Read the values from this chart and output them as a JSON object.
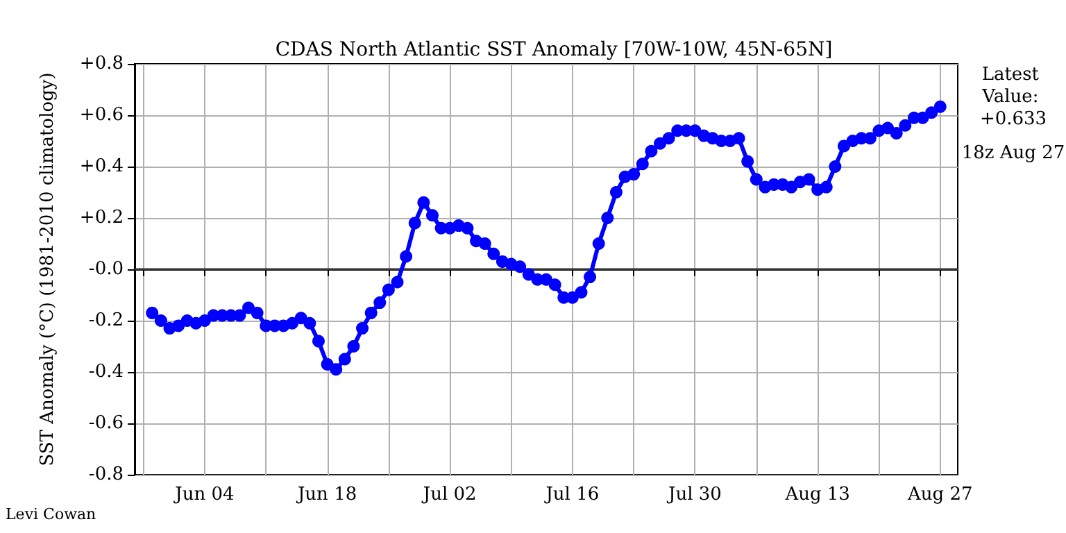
{
  "chart_data": {
    "type": "line",
    "title": "CDAS North Atlantic SST Anomaly [70W-10W, 45N-65N]",
    "ylabel": "SST Anomaly (°C) (1981-2010 climatology)",
    "annotations": [
      "Latest Value: +0.633",
      "18z Aug 27",
      "Levi Cowan"
    ],
    "x": [
      "--05-29",
      "--05-30",
      "--05-31",
      "--06-01",
      "--06-02",
      "--06-03",
      "--06-04",
      "--06-05",
      "--06-06",
      "--06-07",
      "--06-08",
      "--06-09",
      "--06-10",
      "--06-11",
      "--06-12",
      "--06-13",
      "--06-14",
      "--06-15",
      "--06-16",
      "--06-17",
      "--06-18",
      "--06-19",
      "--06-20",
      "--06-21",
      "--06-22",
      "--06-23",
      "--06-24",
      "--06-25",
      "--06-26",
      "--06-27",
      "--06-28",
      "--06-29",
      "--06-30",
      "--07-01",
      "--07-02",
      "--07-03",
      "--07-04",
      "--07-05",
      "--07-06",
      "--07-07",
      "--07-08",
      "--07-09",
      "--07-10",
      "--07-11",
      "--07-12",
      "--07-13",
      "--07-14",
      "--07-15",
      "--07-16",
      "--07-17",
      "--07-18",
      "--07-19",
      "--07-20",
      "--07-21",
      "--07-22",
      "--07-23",
      "--07-24",
      "--07-25",
      "--07-26",
      "--07-27",
      "--07-28",
      "--07-29",
      "--07-30",
      "--07-31",
      "--08-01",
      "--08-02",
      "--08-03",
      "--08-04",
      "--08-05",
      "--08-06",
      "--08-07",
      "--08-08",
      "--08-09",
      "--08-10",
      "--08-11",
      "--08-12",
      "--08-13",
      "--08-14",
      "--08-15",
      "--08-16",
      "--08-17",
      "--08-18",
      "--08-19",
      "--08-20",
      "--08-21",
      "--08-22",
      "--08-23",
      "--08-24",
      "--08-25",
      "--08-26",
      "--08-27"
    ],
    "series": [
      {
        "color": "#0000ff",
        "values": [
          -0.17,
          -0.2,
          -0.23,
          -0.22,
          -0.2,
          -0.21,
          -0.2,
          -0.18,
          -0.18,
          -0.18,
          -0.18,
          -0.15,
          -0.17,
          -0.22,
          -0.22,
          -0.22,
          -0.21,
          -0.19,
          -0.21,
          -0.28,
          -0.37,
          -0.39,
          -0.35,
          -0.3,
          -0.23,
          -0.17,
          -0.13,
          -0.08,
          -0.05,
          0.05,
          0.18,
          0.26,
          0.21,
          0.16,
          0.16,
          0.17,
          0.16,
          0.11,
          0.1,
          0.06,
          0.03,
          0.02,
          0.01,
          -0.02,
          -0.04,
          -0.04,
          -0.06,
          -0.11,
          -0.11,
          -0.09,
          -0.03,
          0.1,
          0.2,
          0.3,
          0.36,
          0.37,
          0.41,
          0.46,
          0.49,
          0.51,
          0.54,
          0.54,
          0.54,
          0.52,
          0.51,
          0.5,
          0.5,
          0.51,
          0.42,
          0.35,
          0.32,
          0.33,
          0.33,
          0.32,
          0.34,
          0.35,
          0.31,
          0.32,
          0.4,
          0.48,
          0.5,
          0.51,
          0.51,
          0.54,
          0.55,
          0.53,
          0.56,
          0.59,
          0.59,
          0.61,
          0.633
        ]
      }
    ],
    "xlim": [
      "--05-27",
      "--08-29"
    ],
    "xticks": [
      {
        "value": "--05-28",
        "label": null
      },
      {
        "value": "--06-04",
        "label": "Jun 04"
      },
      {
        "value": "--06-11",
        "label": null
      },
      {
        "value": "--06-18",
        "label": "Jun 18"
      },
      {
        "value": "--06-25",
        "label": null
      },
      {
        "value": "--07-02",
        "label": "Jul 02"
      },
      {
        "value": "--07-09",
        "label": null
      },
      {
        "value": "--07-16",
        "label": "Jul 16"
      },
      {
        "value": "--07-23",
        "label": null
      },
      {
        "value": "--07-30",
        "label": "Jul 30"
      },
      {
        "value": "--08-06",
        "label": null
      },
      {
        "value": "--08-13",
        "label": "Aug 13"
      },
      {
        "value": "--08-20",
        "label": null
      },
      {
        "value": "--08-27",
        "label": "Aug 27"
      }
    ],
    "ylim": [
      -0.8,
      0.8
    ],
    "yticks": [
      {
        "value": -0.8,
        "label": "-0.8"
      },
      {
        "value": -0.6,
        "label": "-0.6"
      },
      {
        "value": -0.4,
        "label": "-0.4"
      },
      {
        "value": -0.2,
        "label": "-0.2"
      },
      {
        "value": 0,
        "label": "-0.0"
      },
      {
        "value": 0.2,
        "label": "+0.2"
      },
      {
        "value": 0.4,
        "label": "+0.4"
      },
      {
        "value": 0.6,
        "label": "+0.6"
      },
      {
        "value": 0.8,
        "label": "+0.8"
      }
    ],
    "ref_lines": [
      {
        "axis": "y",
        "value": 0,
        "color": "#333333"
      }
    ],
    "grid": true,
    "marker": "circle",
    "line_style": "solid"
  }
}
